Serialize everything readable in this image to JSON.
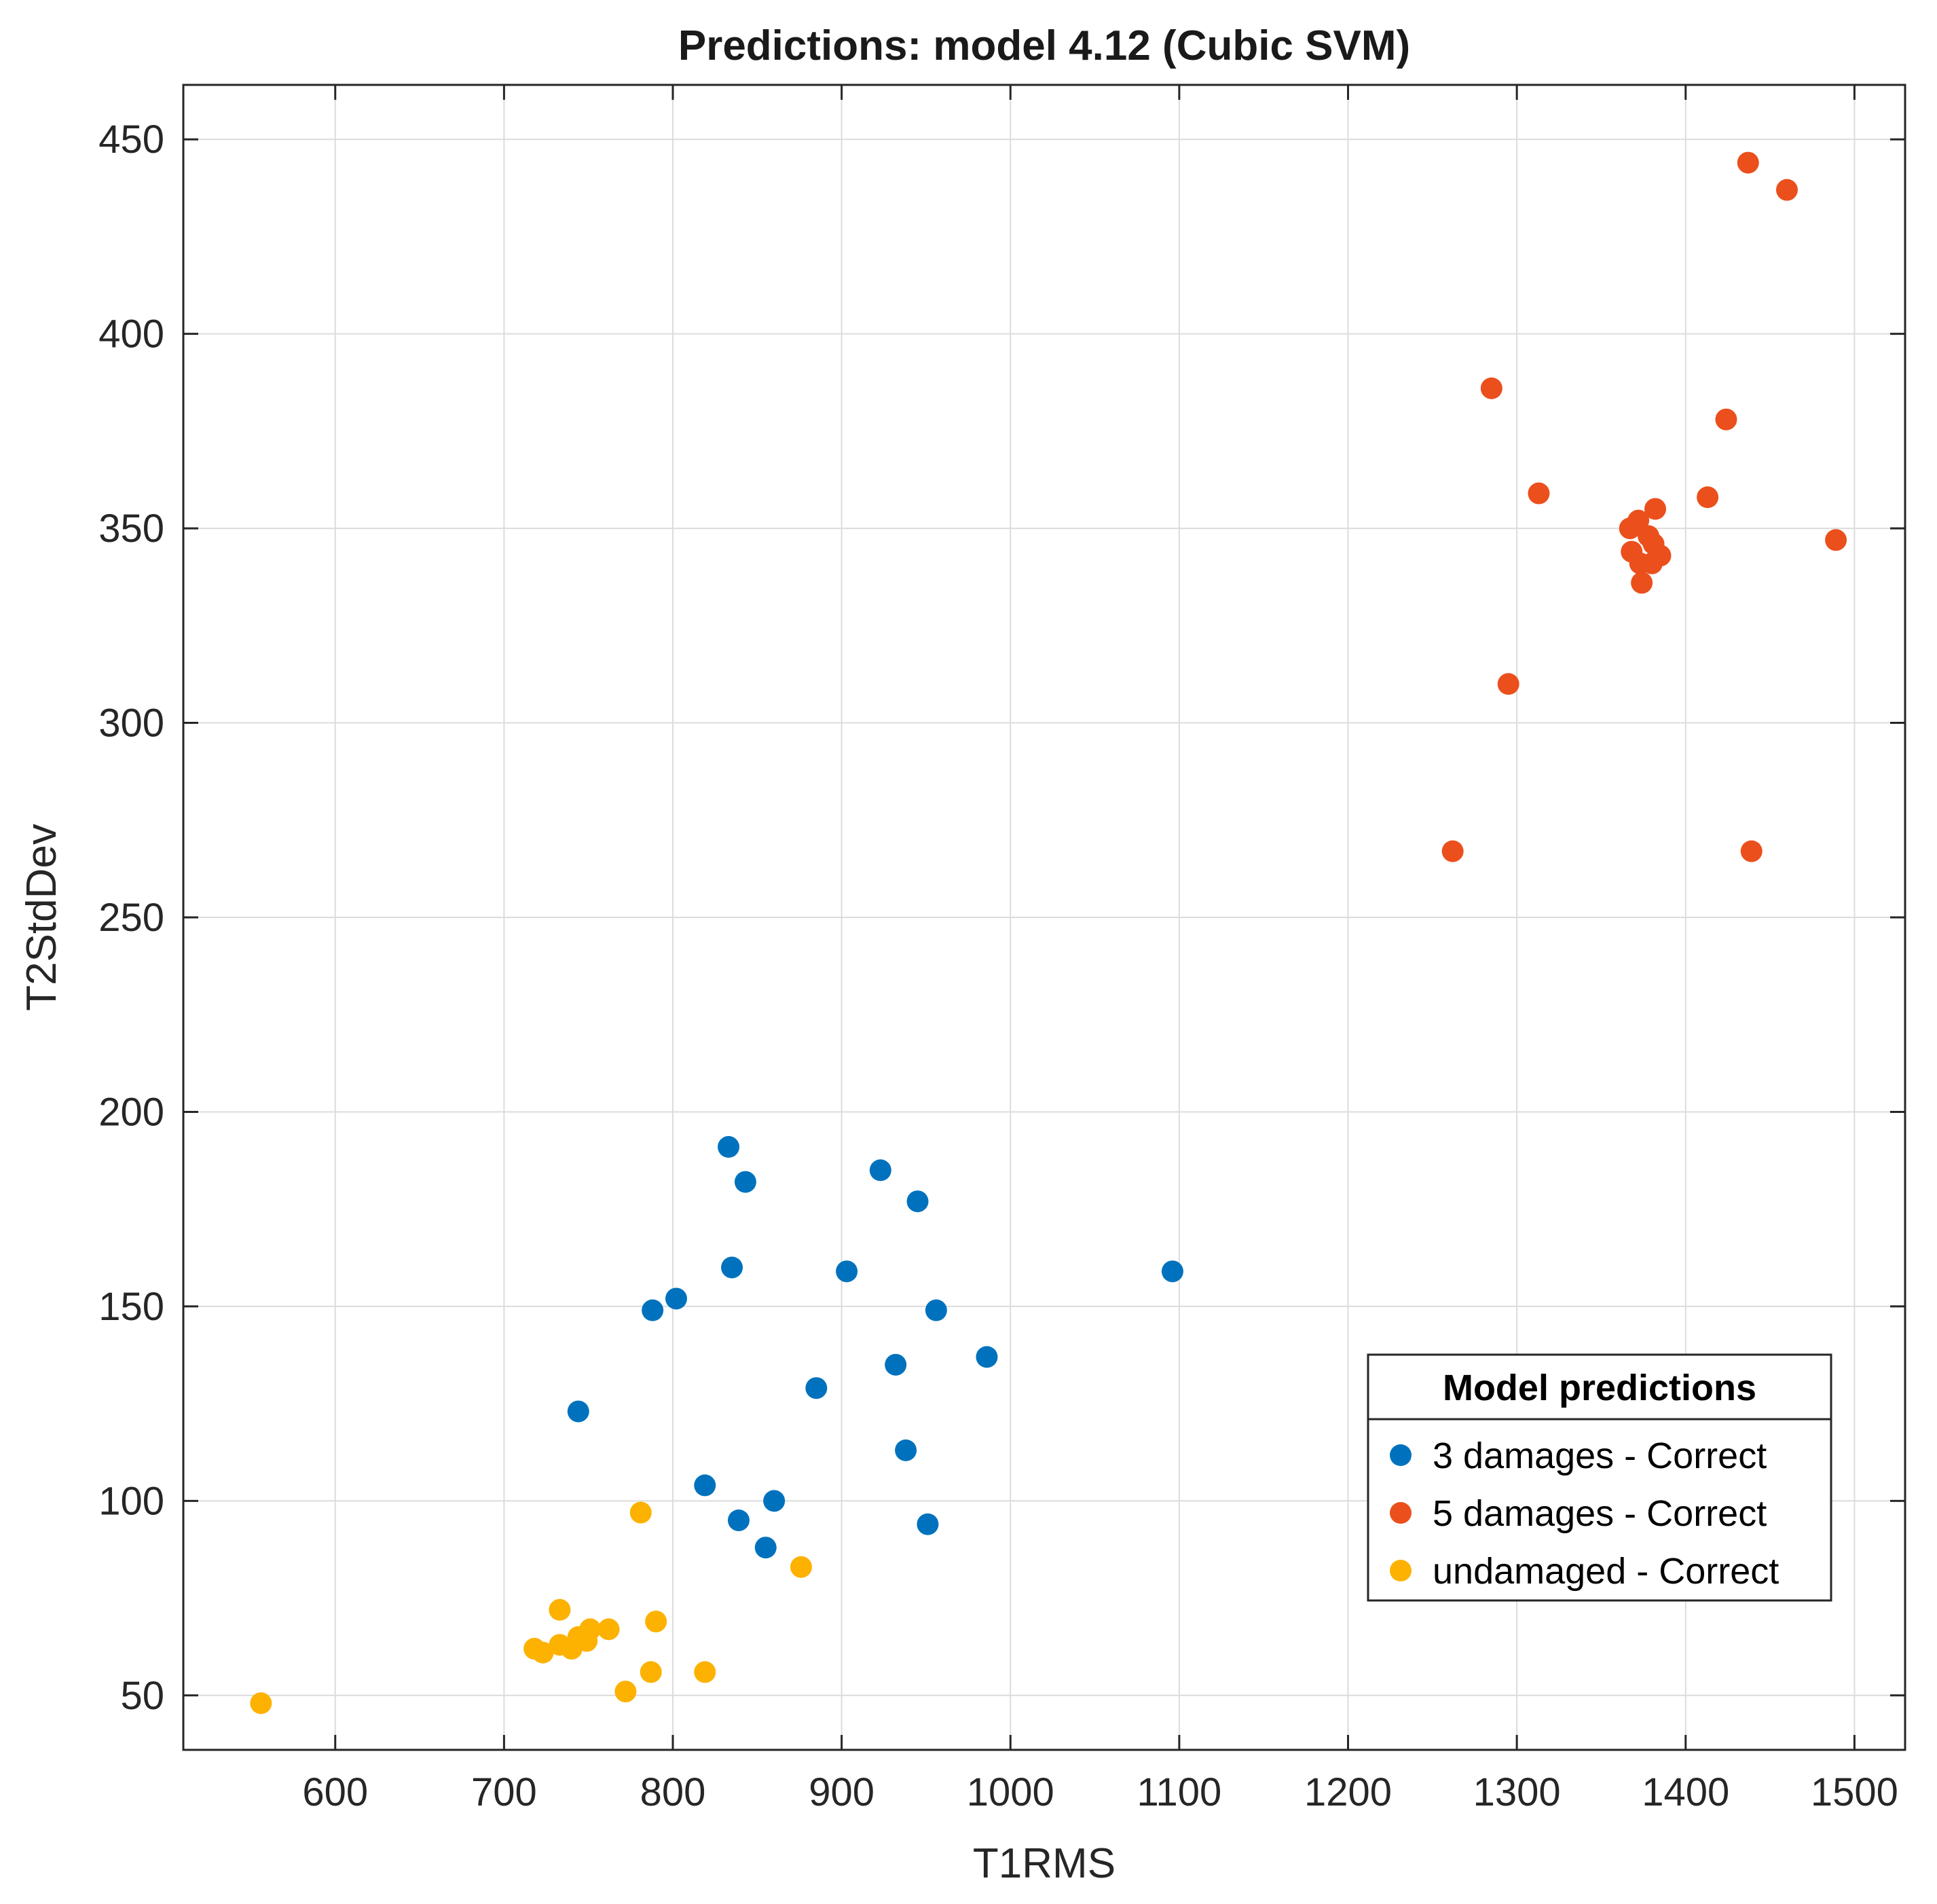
{
  "chart_data": {
    "type": "scatter",
    "title": "Predictions: model 4.12 (Cubic SVM)",
    "xlabel": "T1RMS",
    "ylabel": "T2StdDev",
    "xlim": [
      510,
      1530
    ],
    "ylim": [
      36,
      464
    ],
    "xticks": [
      600,
      700,
      800,
      900,
      1000,
      1100,
      1200,
      1300,
      1400,
      1500
    ],
    "yticks": [
      50,
      100,
      150,
      200,
      250,
      300,
      350,
      400,
      450
    ],
    "grid": true,
    "legend": {
      "title": "Model predictions",
      "placement": "bottom-right"
    },
    "series": [
      {
        "name": "3 damages - Correct",
        "color": "#0072BD",
        "points": [
          [
            833,
            191
          ],
          [
            843,
            182
          ],
          [
            923,
            185
          ],
          [
            945,
            177
          ],
          [
            835,
            160
          ],
          [
            903,
            159
          ],
          [
            1096,
            159
          ],
          [
            802,
            152
          ],
          [
            788,
            149
          ],
          [
            956,
            149
          ],
          [
            986,
            137
          ],
          [
            932,
            135
          ],
          [
            885,
            129
          ],
          [
            744,
            123
          ],
          [
            938,
            113
          ],
          [
            819,
            104
          ],
          [
            860,
            100
          ],
          [
            839,
            95
          ],
          [
            951,
            94
          ],
          [
            855,
            88
          ]
        ]
      },
      {
        "name": "5 damages - Correct",
        "color": "#EB4F1C",
        "points": [
          [
            1437,
            444
          ],
          [
            1460,
            437
          ],
          [
            1285,
            386
          ],
          [
            1424,
            378
          ],
          [
            1313,
            359
          ],
          [
            1413,
            358
          ],
          [
            1382,
            355
          ],
          [
            1372,
            352
          ],
          [
            1367,
            350
          ],
          [
            1378,
            348
          ],
          [
            1489,
            347
          ],
          [
            1381,
            346
          ],
          [
            1368,
            344
          ],
          [
            1385,
            343
          ],
          [
            1373,
            341
          ],
          [
            1380,
            341
          ],
          [
            1374,
            336
          ],
          [
            1295,
            310
          ],
          [
            1262,
            267
          ],
          [
            1439,
            267
          ]
        ]
      },
      {
        "name": "undamaged - Correct",
        "color": "#FDB100",
        "points": [
          [
            781,
            97
          ],
          [
            876,
            83
          ],
          [
            733,
            72
          ],
          [
            790,
            69
          ],
          [
            762,
            67
          ],
          [
            751,
            67
          ],
          [
            744,
            65
          ],
          [
            749,
            64
          ],
          [
            733,
            63
          ],
          [
            740,
            62
          ],
          [
            718,
            62
          ],
          [
            723,
            61
          ],
          [
            787,
            56
          ],
          [
            819,
            56
          ],
          [
            772,
            51
          ],
          [
            556,
            48
          ]
        ]
      }
    ]
  }
}
